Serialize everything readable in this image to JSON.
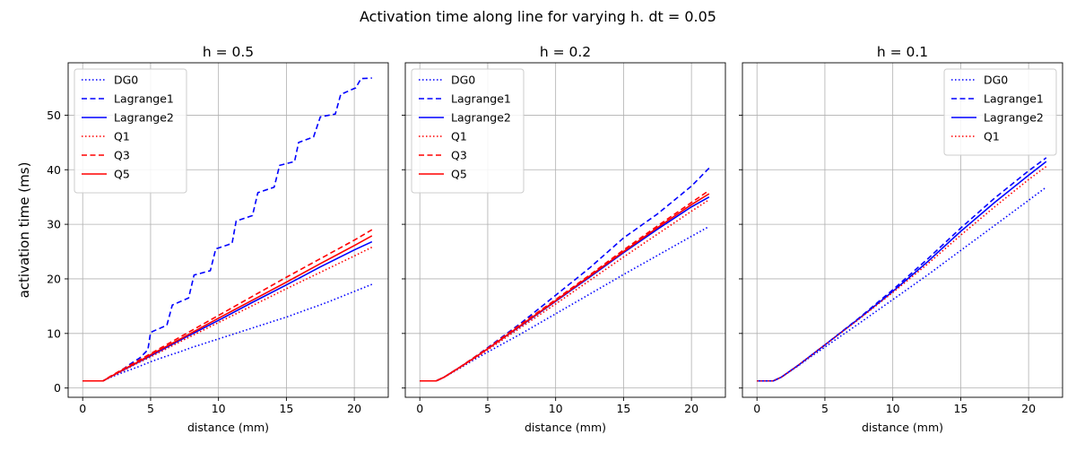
{
  "suptitle": "Activation time along line for varying h. dt = 0.05",
  "colors": {
    "blue": "#0000ff",
    "red": "#ff0000",
    "grid": "#b0b0b0",
    "legend_border": "#cccccc"
  },
  "chart_data": [
    {
      "type": "line",
      "title": "h = 0.5",
      "xlabel": "distance (mm)",
      "ylabel": "activation time (ms)",
      "xlim": [
        -1.07,
        22.5
      ],
      "ylim": [
        -1.7,
        59.6
      ],
      "xticks": [
        0,
        5,
        10,
        15,
        20
      ],
      "yticks": [
        0,
        10,
        20,
        30,
        40,
        50
      ],
      "grid": true,
      "legend_position": "upper-left",
      "series": [
        {
          "name": "DG0",
          "color": "#0000ff",
          "style": "dotted",
          "x": [
            0,
            1.5,
            2,
            3,
            4,
            5,
            6,
            7,
            8,
            9,
            10,
            11,
            12,
            13,
            14,
            15,
            16,
            17,
            18,
            19,
            20,
            21.3
          ],
          "y": [
            1.3,
            1.3,
            1.9,
            2.9,
            3.8,
            4.8,
            5.7,
            6.5,
            7.4,
            8.2,
            9.0,
            9.8,
            10.6,
            11.4,
            12.2,
            13.0,
            13.9,
            14.8,
            15.7,
            16.7,
            17.7,
            19.0
          ]
        },
        {
          "name": "Lagrange1",
          "color": "#0000ff",
          "style": "dashed",
          "x": [
            0,
            1.5,
            2.0,
            3.0,
            3.5,
            4.2,
            4.8,
            5.0,
            6.2,
            6.6,
            7.8,
            8.2,
            9.4,
            9.8,
            11.0,
            11.3,
            12.5,
            12.9,
            14.1,
            14.5,
            15.6,
            15.9,
            17.0,
            17.5,
            18.6,
            19.0,
            20.1,
            20.5,
            21.3
          ],
          "y": [
            1.3,
            1.3,
            2.0,
            3.5,
            4.4,
            5.5,
            7.0,
            10.2,
            11.5,
            15.2,
            16.5,
            20.7,
            21.5,
            25.5,
            26.5,
            30.6,
            31.6,
            35.8,
            36.8,
            40.8,
            41.5,
            45.0,
            46.0,
            49.7,
            50.2,
            53.8,
            55.0,
            56.7,
            56.8
          ]
        },
        {
          "name": "Lagrange2",
          "color": "#0000ff",
          "style": "solid",
          "x": [
            0,
            1.5,
            2,
            3,
            4,
            5,
            7.5,
            10,
            12.5,
            15,
            17.5,
            20,
            21.3
          ],
          "y": [
            1.3,
            1.3,
            2.0,
            3.3,
            4.6,
            5.9,
            9.2,
            12.4,
            15.7,
            18.9,
            22.2,
            25.3,
            26.8
          ]
        },
        {
          "name": "Q1",
          "color": "#ff0000",
          "style": "dotted",
          "x": [
            0,
            1.5,
            2,
            3,
            4,
            5,
            7.5,
            10,
            12.5,
            15,
            17.5,
            20,
            21.3
          ],
          "y": [
            1.3,
            1.3,
            2.0,
            3.2,
            4.5,
            5.7,
            8.9,
            12.0,
            15.1,
            18.2,
            21.2,
            24.2,
            25.8
          ]
        },
        {
          "name": "Q3",
          "color": "#ff0000",
          "style": "dashed",
          "x": [
            0,
            1.5,
            2,
            3,
            4,
            5,
            7.5,
            10,
            12.5,
            15,
            17.5,
            20,
            21.3
          ],
          "y": [
            1.3,
            1.3,
            2.1,
            3.5,
            4.9,
            6.3,
            9.8,
            13.3,
            16.8,
            20.3,
            23.7,
            27.1,
            29.0
          ]
        },
        {
          "name": "Q5",
          "color": "#ff0000",
          "style": "solid",
          "x": [
            0,
            1.5,
            2,
            3,
            4,
            5,
            7.5,
            10,
            12.5,
            15,
            17.5,
            20,
            21.3
          ],
          "y": [
            1.3,
            1.3,
            2.0,
            3.4,
            4.7,
            6.1,
            9.4,
            12.8,
            16.1,
            19.4,
            22.8,
            26.1,
            27.9
          ]
        }
      ]
    },
    {
      "type": "line",
      "title": "h = 0.2",
      "xlabel": "distance (mm)",
      "ylabel": "",
      "xlim": [
        -1.07,
        22.5
      ],
      "ylim": [
        -1.7,
        59.6
      ],
      "xticks": [
        0,
        5,
        10,
        15,
        20
      ],
      "yticks": [
        0,
        10,
        20,
        30,
        40,
        50
      ],
      "grid": true,
      "legend_position": "upper-left",
      "series": [
        {
          "name": "DG0",
          "color": "#0000ff",
          "style": "dotted",
          "x": [
            0,
            1.2,
            1.8,
            3,
            4,
            5,
            7.5,
            10,
            12.5,
            15,
            17.5,
            20,
            21.3
          ],
          "y": [
            1.3,
            1.3,
            2.0,
            3.7,
            5.2,
            6.6,
            10.0,
            13.6,
            17.2,
            20.8,
            24.3,
            27.8,
            29.6
          ]
        },
        {
          "name": "Lagrange1",
          "color": "#0000ff",
          "style": "dashed",
          "x": [
            0,
            1.2,
            1.8,
            3,
            4,
            5,
            7.5,
            10,
            12.5,
            15,
            17.5,
            20,
            21.3
          ],
          "y": [
            1.3,
            1.3,
            2.0,
            3.9,
            5.6,
            7.4,
            12.0,
            17.0,
            22.0,
            27.5,
            31.9,
            37.0,
            40.3
          ]
        },
        {
          "name": "Lagrange2",
          "color": "#0000ff",
          "style": "solid",
          "x": [
            0,
            1.2,
            1.8,
            3,
            4,
            5,
            7.5,
            10,
            12.5,
            15,
            17.5,
            20,
            21.3
          ],
          "y": [
            1.3,
            1.3,
            2.0,
            3.9,
            5.5,
            7.2,
            11.5,
            15.9,
            20.3,
            24.8,
            29.1,
            33.2,
            35.0
          ]
        },
        {
          "name": "Q1",
          "color": "#ff0000",
          "style": "dotted",
          "x": [
            0,
            1.2,
            1.8,
            3,
            4,
            5,
            7.5,
            10,
            12.5,
            15,
            17.5,
            20,
            21.3
          ],
          "y": [
            1.3,
            1.3,
            2.0,
            3.8,
            5.4,
            7.0,
            11.2,
            15.4,
            19.7,
            24.0,
            28.2,
            32.4,
            34.5
          ]
        },
        {
          "name": "Q3",
          "color": "#ff0000",
          "style": "dashed",
          "x": [
            0,
            1.2,
            1.8,
            3,
            4,
            5,
            7.5,
            10,
            12.5,
            15,
            17.5,
            20,
            21.3
          ],
          "y": [
            1.3,
            1.3,
            2.0,
            3.9,
            5.6,
            7.3,
            11.8,
            16.2,
            20.7,
            25.3,
            29.7,
            34.0,
            36.2
          ]
        },
        {
          "name": "Q5",
          "color": "#ff0000",
          "style": "solid",
          "x": [
            0,
            1.2,
            1.8,
            3,
            4,
            5,
            7.5,
            10,
            12.5,
            15,
            17.5,
            20,
            21.3
          ],
          "y": [
            1.3,
            1.3,
            2.0,
            3.9,
            5.5,
            7.2,
            11.6,
            16.0,
            20.5,
            25.0,
            29.4,
            33.6,
            35.6
          ]
        }
      ]
    },
    {
      "type": "line",
      "title": "h = 0.1",
      "xlabel": "distance (mm)",
      "ylabel": "",
      "xlim": [
        -1.07,
        22.5
      ],
      "ylim": [
        -1.7,
        59.6
      ],
      "xticks": [
        0,
        5,
        10,
        15,
        20
      ],
      "yticks": [
        0,
        10,
        20,
        30,
        40,
        50
      ],
      "grid": true,
      "legend_position": "upper-right",
      "series": [
        {
          "name": "DG0",
          "color": "#0000ff",
          "style": "dotted",
          "x": [
            0,
            1.2,
            1.8,
            3,
            4,
            5,
            7.5,
            10,
            12.5,
            15,
            17.5,
            20,
            21.3
          ],
          "y": [
            1.3,
            1.3,
            2.0,
            4.0,
            5.8,
            7.5,
            11.8,
            16.2,
            20.6,
            25.2,
            29.8,
            34.4,
            36.8
          ]
        },
        {
          "name": "Lagrange1",
          "color": "#0000ff",
          "style": "dashed",
          "x": [
            0,
            1.2,
            1.8,
            3,
            4,
            5,
            7.5,
            10,
            12.5,
            15,
            17.5,
            20,
            21.3
          ],
          "y": [
            1.3,
            1.3,
            2.0,
            4.1,
            6.0,
            7.9,
            12.8,
            18.0,
            23.5,
            29.3,
            34.8,
            39.8,
            42.2
          ]
        },
        {
          "name": "Lagrange2",
          "color": "#0000ff",
          "style": "solid",
          "x": [
            0,
            1.2,
            1.8,
            3,
            4,
            5,
            7.5,
            10,
            12.5,
            15,
            17.5,
            20,
            21.3
          ],
          "y": [
            1.3,
            1.3,
            2.0,
            4.1,
            6.0,
            7.9,
            12.7,
            17.7,
            23.0,
            28.7,
            34.0,
            39.0,
            41.5
          ]
        },
        {
          "name": "Q1",
          "color": "#ff0000",
          "style": "dotted",
          "x": [
            0,
            1.2,
            1.8,
            3,
            4,
            5,
            7.5,
            10,
            12.5,
            15,
            17.5,
            20,
            21.3
          ],
          "y": [
            1.3,
            1.3,
            2.0,
            4.1,
            6.0,
            7.9,
            12.6,
            17.5,
            22.6,
            28.0,
            33.2,
            38.2,
            40.6
          ]
        }
      ]
    }
  ]
}
